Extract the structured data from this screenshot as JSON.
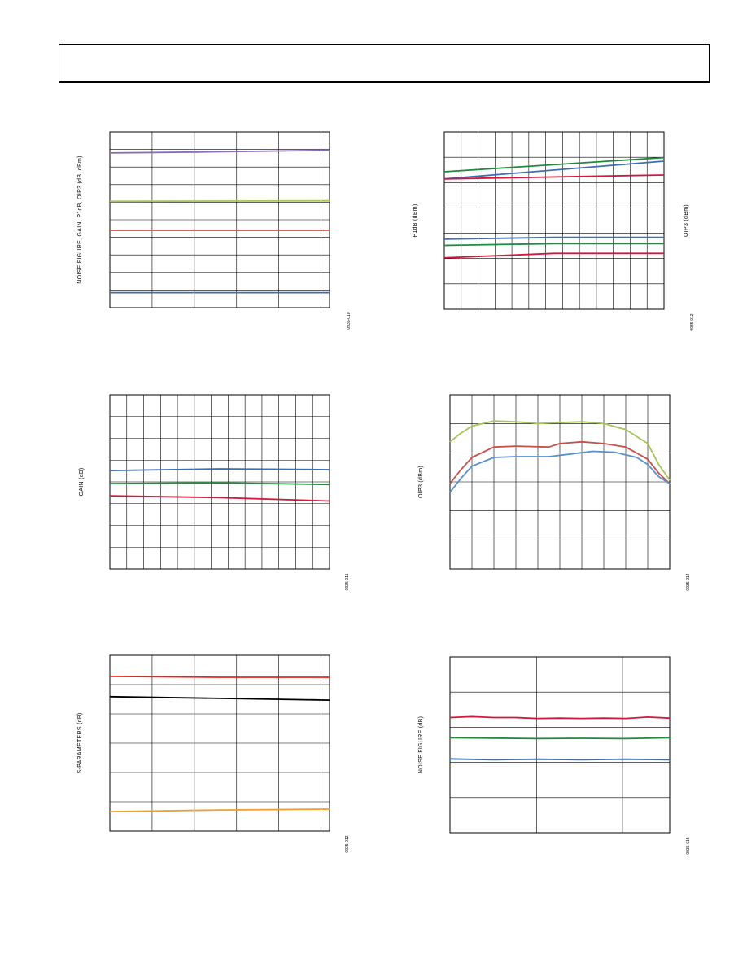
{
  "colors": {
    "purple": "#8a6bb8",
    "olive": "#a6c45a",
    "red": "#c8504a",
    "blue": "#3d6db5",
    "green": "#1f8a3c",
    "crimson": "#d4173d",
    "bright_red": "#e8231f",
    "black": "#000000",
    "orange": "#f0a030",
    "light_blue": "#5a8fd0"
  },
  "figures": [
    {
      "id": "fig10",
      "code": "0935-010",
      "chart_data": {
        "type": "line",
        "ylabel": "NOISE FIGURE, GAIN, P1dB, OIP3 (dB, dBm)",
        "xgrid": 5,
        "ygrid": 10,
        "series": [
          {
            "color": "purple",
            "values": [
              [
                0,
                0.88
              ],
              [
                0.4,
                0.885
              ],
              [
                1,
                0.895
              ]
            ]
          },
          {
            "color": "olive",
            "values": [
              [
                0,
                0.605
              ],
              [
                1,
                0.608
              ]
            ]
          },
          {
            "color": "red",
            "values": [
              [
                0,
                0.44
              ],
              [
                1,
                0.44
              ]
            ]
          },
          {
            "color": "blue",
            "values": [
              [
                0,
                0.085
              ],
              [
                1,
                0.085
              ]
            ]
          }
        ]
      }
    },
    {
      "id": "fig12",
      "code": "0935-012",
      "chart_data": {
        "type": "line",
        "ylabel": "P1dB (dBm)",
        "ylabel_right": "OIP3 (dBm)",
        "xgrid": 13,
        "ygrid": 7,
        "series": [
          {
            "color": "green",
            "values": [
              [
                0,
                0.775
              ],
              [
                1,
                0.855
              ]
            ]
          },
          {
            "color": "blue",
            "values": [
              [
                0,
                0.735
              ],
              [
                1,
                0.835
              ]
            ]
          },
          {
            "color": "crimson",
            "values": [
              [
                0,
                0.735
              ],
              [
                1,
                0.757
              ]
            ]
          },
          {
            "color": "blue",
            "values": [
              [
                0,
                0.395
              ],
              [
                0.5,
                0.405
              ],
              [
                1,
                0.405
              ]
            ]
          },
          {
            "color": "green",
            "values": [
              [
                0,
                0.36
              ],
              [
                0.5,
                0.37
              ],
              [
                1,
                0.37
              ]
            ]
          },
          {
            "color": "crimson",
            "values": [
              [
                0,
                0.29
              ],
              [
                0.5,
                0.315
              ],
              [
                1,
                0.315
              ]
            ]
          }
        ]
      }
    },
    {
      "id": "fig11",
      "code": "0935-011",
      "chart_data": {
        "type": "line",
        "ylabel": "GAIN (dB)",
        "xgrid": 13,
        "ygrid": 8,
        "series": [
          {
            "color": "blue",
            "values": [
              [
                0,
                0.565
              ],
              [
                0.5,
                0.575
              ],
              [
                1,
                0.57
              ]
            ]
          },
          {
            "color": "green",
            "values": [
              [
                0,
                0.49
              ],
              [
                0.5,
                0.495
              ],
              [
                1,
                0.485
              ]
            ]
          },
          {
            "color": "crimson",
            "values": [
              [
                0,
                0.42
              ],
              [
                0.5,
                0.41
              ],
              [
                1,
                0.39
              ]
            ]
          }
        ]
      }
    },
    {
      "id": "fig14",
      "code": "0935-014",
      "chart_data": {
        "type": "line",
        "ylabel": "OIP3 (dBm)",
        "xgrid": 10,
        "ygrid": 6,
        "series": [
          {
            "color": "olive",
            "values": [
              [
                0,
                0.73
              ],
              [
                0.05,
                0.78
              ],
              [
                0.1,
                0.82
              ],
              [
                0.2,
                0.85
              ],
              [
                0.3,
                0.845
              ],
              [
                0.4,
                0.835
              ],
              [
                0.5,
                0.84
              ],
              [
                0.6,
                0.845
              ],
              [
                0.7,
                0.835
              ],
              [
                0.8,
                0.8
              ],
              [
                0.9,
                0.72
              ],
              [
                0.95,
                0.6
              ],
              [
                1,
                0.51
              ]
            ]
          },
          {
            "color": "red",
            "values": [
              [
                0,
                0.49
              ],
              [
                0.05,
                0.57
              ],
              [
                0.1,
                0.64
              ],
              [
                0.2,
                0.7
              ],
              [
                0.3,
                0.705
              ],
              [
                0.45,
                0.7
              ],
              [
                0.5,
                0.72
              ],
              [
                0.6,
                0.73
              ],
              [
                0.7,
                0.72
              ],
              [
                0.8,
                0.7
              ],
              [
                0.9,
                0.63
              ],
              [
                0.95,
                0.55
              ],
              [
                1,
                0.49
              ]
            ]
          },
          {
            "color": "light_blue",
            "values": [
              [
                0,
                0.44
              ],
              [
                0.05,
                0.52
              ],
              [
                0.1,
                0.59
              ],
              [
                0.2,
                0.64
              ],
              [
                0.3,
                0.645
              ],
              [
                0.45,
                0.645
              ],
              [
                0.55,
                0.66
              ],
              [
                0.65,
                0.675
              ],
              [
                0.75,
                0.67
              ],
              [
                0.85,
                0.64
              ],
              [
                0.9,
                0.6
              ],
              [
                0.95,
                0.53
              ],
              [
                1,
                0.49
              ]
            ]
          }
        ]
      }
    },
    {
      "id": "fig12b",
      "code": "0935-012",
      "chart_data": {
        "type": "line",
        "ylabel": "S-PARAMETERS (dB)",
        "xgrid": 5,
        "ygrid": 6,
        "series": [
          {
            "color": "bright_red",
            "values": [
              [
                0,
                0.88
              ],
              [
                0.5,
                0.875
              ],
              [
                1,
                0.875
              ]
            ]
          },
          {
            "color": "black",
            "values": [
              [
                0,
                0.765
              ],
              [
                0.5,
                0.755
              ],
              [
                1,
                0.745
              ]
            ]
          },
          {
            "color": "orange",
            "values": [
              [
                0,
                0.11
              ],
              [
                0.5,
                0.12
              ],
              [
                1,
                0.125
              ]
            ]
          }
        ]
      }
    },
    {
      "id": "fig15",
      "code": "0935-015",
      "chart_data": {
        "type": "line",
        "ylabel": "NOISE FIGURE (dB)",
        "xgrid": 5,
        "ygrid": 5,
        "xgrid_custom": [
          0.395,
          0.785
        ],
        "series": [
          {
            "color": "crimson",
            "values": [
              [
                0,
                0.655
              ],
              [
                0.1,
                0.66
              ],
              [
                0.2,
                0.655
              ],
              [
                0.3,
                0.655
              ],
              [
                0.4,
                0.65
              ],
              [
                0.5,
                0.652
              ],
              [
                0.6,
                0.65
              ],
              [
                0.7,
                0.652
              ],
              [
                0.8,
                0.65
              ],
              [
                0.9,
                0.658
              ],
              [
                1,
                0.652
              ]
            ]
          },
          {
            "color": "green",
            "values": [
              [
                0,
                0.54
              ],
              [
                0.2,
                0.538
              ],
              [
                0.4,
                0.535
              ],
              [
                0.6,
                0.537
              ],
              [
                0.8,
                0.535
              ],
              [
                1,
                0.54
              ]
            ]
          },
          {
            "color": "blue",
            "values": [
              [
                0,
                0.42
              ],
              [
                0.2,
                0.415
              ],
              [
                0.4,
                0.418
              ],
              [
                0.6,
                0.415
              ],
              [
                0.8,
                0.418
              ],
              [
                1,
                0.415
              ]
            ]
          }
        ]
      }
    }
  ]
}
